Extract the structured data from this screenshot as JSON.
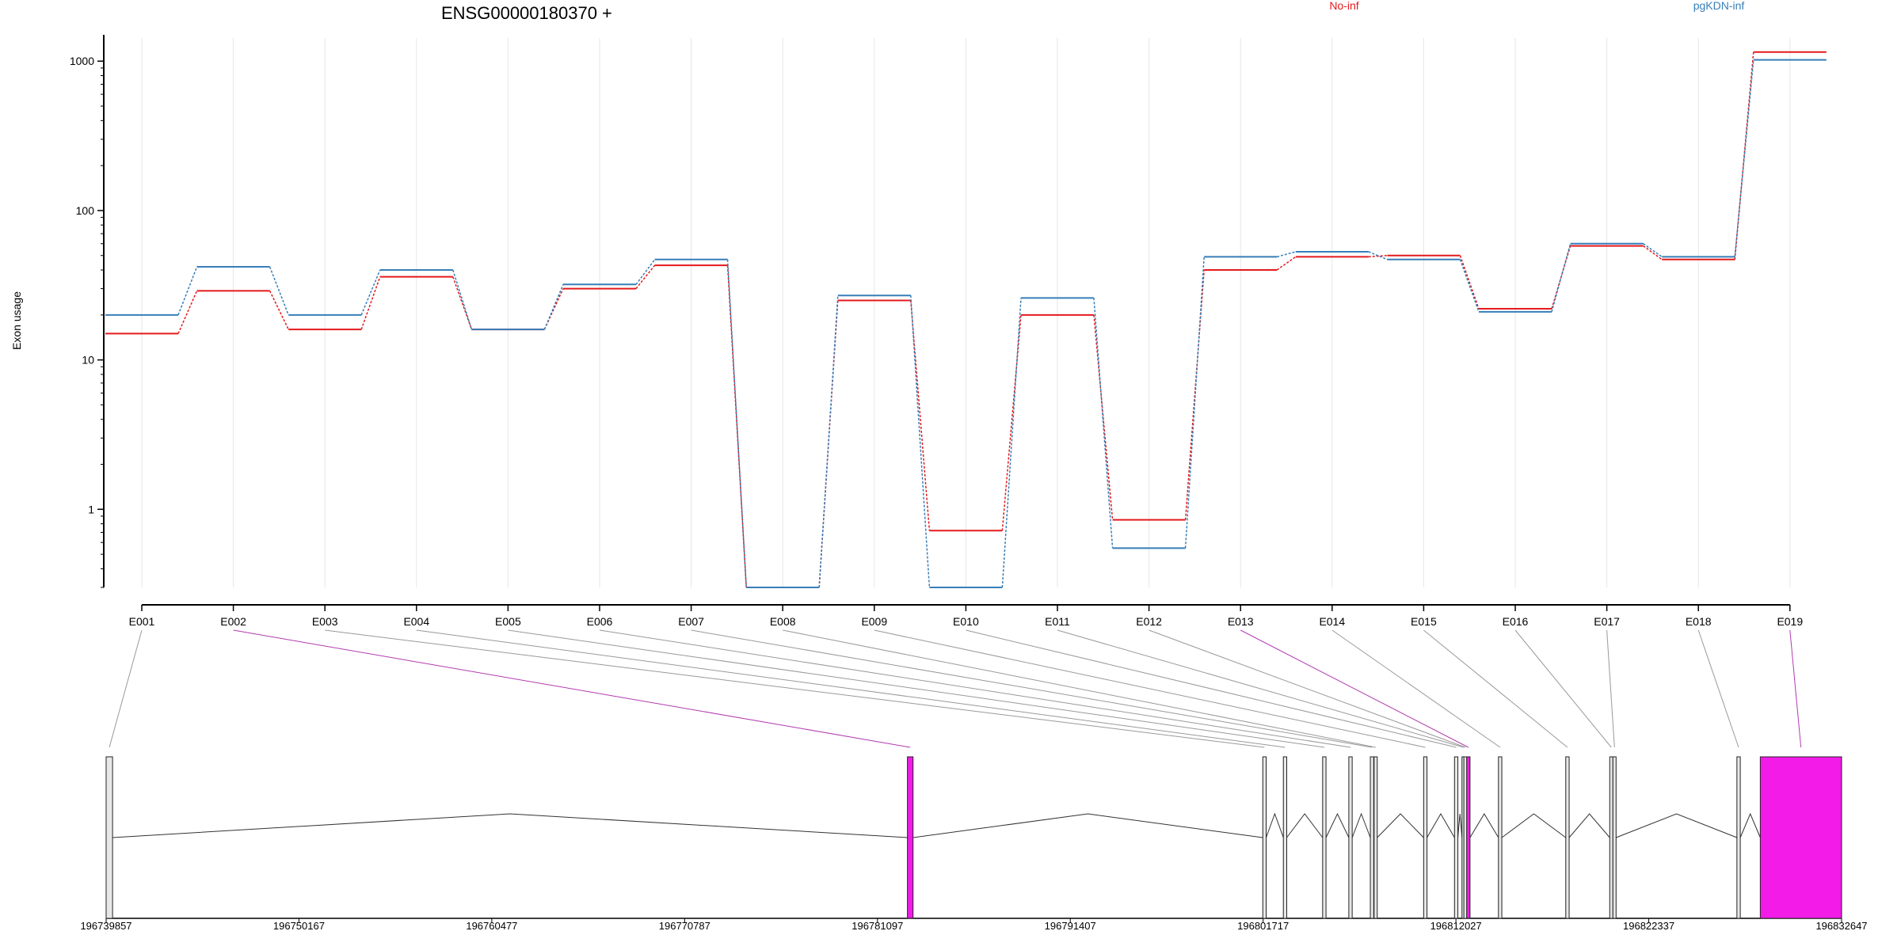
{
  "chart_data": {
    "type": "line",
    "title": "ENSG00000180370 +",
    "xlabel": "",
    "ylabel": "Exon usage",
    "yscale": "log",
    "ylim": [
      0.3,
      1500
    ],
    "yticks": [
      1,
      10,
      100,
      1000
    ],
    "grid": true,
    "legend_placement": "top",
    "categories": [
      "E001",
      "E002",
      "E003",
      "E004",
      "E005",
      "E006",
      "E007",
      "E008",
      "E009",
      "E010",
      "E011",
      "E012",
      "E013",
      "E014",
      "E015",
      "E016",
      "E017",
      "E018",
      "E019"
    ],
    "series": [
      {
        "name": "No-inf",
        "color": "#e41a1c",
        "values": [
          15,
          29,
          16,
          36,
          16,
          30,
          43,
          0.3,
          25,
          0.72,
          20,
          0.85,
          40,
          49,
          50,
          22,
          58,
          47,
          1150
        ]
      },
      {
        "name": "pgKDN-inf",
        "color": "#377eb8",
        "values": [
          20,
          42,
          20,
          40,
          16,
          32,
          47,
          0.3,
          27,
          0.3,
          26,
          0.55,
          49,
          53,
          47,
          21,
          60,
          49,
          1020
        ]
      }
    ],
    "gene_model": {
      "genomic_ticks": [
        "196739857",
        "196750167",
        "196760477",
        "196770787",
        "196781097",
        "196791407",
        "196801717",
        "196812027",
        "196822337",
        "196832647"
      ],
      "start": 196739857,
      "end": 196832647,
      "highlight_color": "#f21be8",
      "exons": [
        {
          "id": "E001",
          "start": 196739857,
          "end": 196740200,
          "highlight": false
        },
        {
          "id": "E002",
          "start": 196782700,
          "end": 196783000,
          "highlight": true
        },
        {
          "id": "E003",
          "start": 196801700,
          "end": 196801880,
          "highlight": false
        },
        {
          "id": "E004",
          "start": 196802800,
          "end": 196802980,
          "highlight": false
        },
        {
          "id": "E005",
          "start": 196804900,
          "end": 196805080,
          "highlight": false
        },
        {
          "id": "E006",
          "start": 196806300,
          "end": 196806480,
          "highlight": false
        },
        {
          "id": "E007",
          "start": 196807450,
          "end": 196807630,
          "highlight": false
        },
        {
          "id": "E008",
          "start": 196807650,
          "end": 196807780,
          "highlight": false
        },
        {
          "id": "E009",
          "start": 196810300,
          "end": 196810480,
          "highlight": false
        },
        {
          "id": "E010",
          "start": 196811950,
          "end": 196812130,
          "highlight": false
        },
        {
          "id": "E011",
          "start": 196812350,
          "end": 196812430,
          "highlight": false
        },
        {
          "id": "E012",
          "start": 196812450,
          "end": 196812550,
          "highlight": false
        },
        {
          "id": "E013",
          "start": 196812600,
          "end": 196812780,
          "highlight": true
        },
        {
          "id": "E014",
          "start": 196814300,
          "end": 196814480,
          "highlight": false
        },
        {
          "id": "E015",
          "start": 196817900,
          "end": 196818080,
          "highlight": false
        },
        {
          "id": "E016",
          "start": 196820250,
          "end": 196820400,
          "highlight": false
        },
        {
          "id": "E017",
          "start": 196820420,
          "end": 196820500,
          "highlight": false
        },
        {
          "id": "E018",
          "start": 196827050,
          "end": 196827230,
          "highlight": false
        },
        {
          "id": "E019",
          "start": 196828300,
          "end": 196832647,
          "highlight": true
        }
      ]
    }
  }
}
